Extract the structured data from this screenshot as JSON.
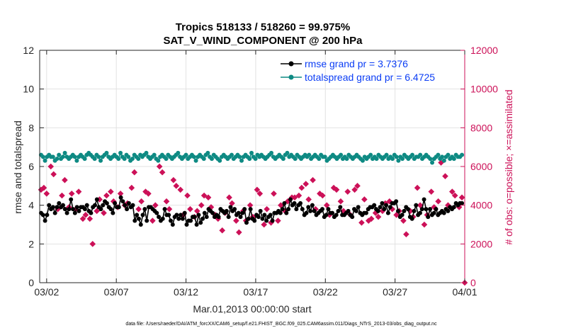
{
  "chart_data": {
    "type": "line",
    "title": "Tropics 518133 / 518260 = 99.975%",
    "subtitle": "SAT_V_WIND_COMPONENT @ 200 hPa",
    "xlabel": "Mar.01,2013 00:00:00 start",
    "ylabel": "rmse and totalspread",
    "ylabel_right": "# of obs: o=possible; ×=assimilated",
    "footnote": "data file: /Users/raeder/DAI/ATM_forcXX/CAM6_setup/f.e21.FHIST_BGC.f09_025.CAM6assim.011/Diags_NTrS_2013-03/obs_diag_output.nc",
    "xlim": [
      1.5,
      32
    ],
    "ylim": [
      0,
      12
    ],
    "ylim_right": [
      0,
      12000
    ],
    "x_ticks": [
      2,
      7,
      12,
      17,
      22,
      27,
      32
    ],
    "x_tick_labels": [
      "03/02",
      "03/07",
      "03/12",
      "03/17",
      "03/22",
      "03/27",
      "04/01"
    ],
    "y_ticks": [
      0,
      2,
      4,
      6,
      8,
      10,
      12
    ],
    "y_ticks_right": [
      0,
      2000,
      4000,
      6000,
      8000,
      10000,
      12000
    ],
    "grid": true,
    "legend_position": "top-right",
    "colors": {
      "rmse": "#000000",
      "totalspread": "#0e8a83",
      "obs": "#cc1158",
      "legend_text": "#0b3df5",
      "right_axis": "#cc1158"
    },
    "series": [
      {
        "name": "rmse grand pr = 3.7376",
        "axis": "left",
        "values": [
          3.6,
          3.5,
          3.2,
          3.5,
          4.0,
          3.8,
          3.9,
          3.6,
          3.9,
          4.1,
          3.9,
          4.0,
          3.8,
          3.6,
          3.8,
          4.3,
          3.8,
          3.6,
          3.9,
          3.7,
          3.9,
          3.9,
          3.8,
          4.0,
          3.7,
          3.6,
          3.9,
          4.0,
          4.3,
          3.9,
          3.8,
          4.0,
          4.2,
          4.1,
          3.9,
          3.8,
          3.6,
          4.1,
          3.9,
          3.9,
          4.4,
          4.2,
          4.0,
          3.8,
          4.1,
          3.9,
          4.0,
          3.2,
          3.5,
          3.3,
          3.0,
          3.5,
          3.8,
          3.2,
          3.9,
          3.9,
          3.8,
          3.7,
          3.6,
          3.4,
          3.2,
          3.3,
          3.8,
          3.5,
          3.5,
          3.2,
          3.0,
          3.4,
          3.5,
          3.3,
          3.5,
          3.3,
          3.6,
          3.0,
          3.2,
          3.2,
          3.4,
          3.4,
          3.0,
          3.5,
          3.1,
          3.3,
          3.6,
          3.4,
          3.8,
          3.7,
          3.6,
          3.4,
          3.5,
          3.4,
          3.8,
          3.7,
          3.6,
          3.7,
          3.4,
          3.9,
          3.7,
          3.8,
          3.5,
          3.6,
          3.4,
          3.6,
          3.8,
          3.1,
          3.3,
          3.8,
          3.3,
          3.2,
          3.5,
          3.4,
          3.7,
          3.3,
          3.5,
          3.2,
          3.4,
          3.5,
          3.2,
          3.6,
          3.6,
          3.7,
          3.6,
          3.8,
          4.1,
          3.6,
          3.8,
          4.3,
          4.0,
          4.1,
          3.8,
          4.0,
          4.1,
          3.8,
          3.5,
          3.6,
          3.9,
          3.7,
          4.0,
          3.7,
          3.5,
          3.6,
          3.7,
          3.8,
          3.4,
          3.5,
          3.8,
          3.6,
          3.6,
          3.4,
          3.5,
          3.7,
          3.9,
          3.5,
          3.5,
          3.6,
          3.7,
          3.5,
          3.4,
          3.8,
          3.7,
          3.9,
          3.6,
          3.5,
          3.6,
          3.6,
          3.8,
          3.9,
          3.9,
          4.0,
          3.8,
          3.7,
          3.9,
          4.1,
          3.8,
          4.0,
          3.6,
          3.9,
          4.1,
          4.1,
          4.2,
          3.7,
          3.4,
          3.5,
          3.7,
          3.9,
          3.8,
          3.4,
          3.3,
          3.7,
          4.0,
          3.5,
          3.6,
          3.8,
          4.3,
          3.8,
          3.4,
          3.8,
          3.5,
          3.6,
          3.8,
          3.5,
          3.6,
          3.7,
          3.6,
          3.8,
          3.7,
          3.9,
          3.8,
          3.9,
          4.1,
          4.0,
          4.1,
          4.1
        ]
      },
      {
        "name": "totalspread grand pr = 6.4725",
        "axis": "left",
        "values": [
          6.6,
          6.5,
          6.3,
          6.5,
          6.6,
          6.5,
          6.5,
          6.3,
          6.4,
          6.6,
          6.4,
          6.5,
          6.7,
          6.5,
          6.4,
          6.5,
          6.6,
          6.5,
          6.3,
          6.5,
          6.6,
          6.5,
          6.4,
          6.6,
          6.7,
          6.6,
          6.5,
          6.4,
          6.6,
          6.5,
          6.3,
          6.5,
          6.6,
          6.7,
          6.5,
          6.4,
          6.5,
          6.6,
          6.5,
          6.4,
          6.7,
          6.5,
          6.4,
          6.6,
          6.5,
          6.3,
          6.4,
          6.6,
          6.5,
          6.4,
          6.6,
          6.5,
          6.6,
          6.7,
          6.5,
          6.4,
          6.5,
          6.6,
          6.4,
          6.3,
          6.5,
          6.6,
          6.5,
          6.4,
          6.6,
          6.5,
          6.4,
          6.5,
          6.6,
          6.7,
          6.5,
          6.4,
          6.5,
          6.6,
          6.4,
          6.5,
          6.6,
          6.5,
          6.3,
          6.5,
          6.6,
          6.5,
          6.4,
          6.6,
          6.7,
          6.5,
          6.4,
          6.6,
          6.5,
          6.4,
          6.3,
          6.5,
          6.6,
          6.5,
          6.4,
          6.5,
          6.6,
          6.4,
          6.5,
          6.6,
          6.5,
          6.3,
          6.5,
          6.6,
          6.5,
          6.4,
          6.7,
          6.5,
          6.4,
          6.6,
          6.5,
          6.6,
          6.5,
          6.4,
          6.5,
          6.6,
          6.7,
          6.5,
          6.4,
          6.5,
          6.6,
          6.5,
          6.4,
          6.6,
          6.7,
          6.5,
          6.6,
          6.5,
          6.4,
          6.6,
          6.5,
          6.4,
          6.5,
          6.6,
          6.5,
          6.6,
          6.4,
          6.5,
          6.6,
          6.5,
          6.4,
          6.6,
          6.5,
          6.5,
          6.3,
          6.4,
          6.5,
          6.6,
          6.5,
          6.4,
          6.5,
          6.6,
          6.4,
          6.5,
          6.4,
          6.6,
          6.5,
          6.4,
          6.5,
          6.6,
          6.5,
          6.4,
          6.3,
          6.5,
          6.4,
          6.5,
          6.6,
          6.4,
          6.5,
          6.4,
          6.6,
          6.5,
          6.4,
          6.5,
          6.6,
          6.4,
          6.5,
          6.4,
          6.6,
          6.5,
          6.3,
          6.5,
          6.4,
          6.6,
          6.5,
          6.4,
          6.5,
          6.6,
          6.4,
          6.5,
          6.5,
          6.6,
          6.4,
          6.5,
          6.6,
          6.5,
          6.4,
          6.2,
          6.4,
          6.5,
          6.6,
          6.4,
          6.5,
          6.3,
          6.5,
          6.6,
          6.4,
          6.5,
          6.4,
          6.6,
          6.5,
          6.5,
          6.6
        ]
      },
      {
        "name": "# of obs assimilated",
        "axis": "right",
        "points": [
          [
            1.6,
            4800
          ],
          [
            1.8,
            4900
          ],
          [
            2.0,
            4600
          ],
          [
            2.3,
            6000
          ],
          [
            2.5,
            5600
          ],
          [
            2.8,
            3800
          ],
          [
            3.1,
            4500
          ],
          [
            3.3,
            5300
          ],
          [
            3.6,
            3900
          ],
          [
            3.8,
            4600
          ],
          [
            4.1,
            3800
          ],
          [
            4.3,
            4700
          ],
          [
            4.6,
            3300
          ],
          [
            4.8,
            3500
          ],
          [
            5.1,
            3300
          ],
          [
            5.3,
            2000
          ],
          [
            5.6,
            3700
          ],
          [
            5.8,
            4300
          ],
          [
            6.1,
            3600
          ],
          [
            6.3,
            4500
          ],
          [
            6.6,
            4700
          ],
          [
            6.8,
            4200
          ],
          [
            7.1,
            3900
          ],
          [
            7.3,
            4600
          ],
          [
            7.6,
            4000
          ],
          [
            7.8,
            4100
          ],
          [
            8.1,
            4900
          ],
          [
            8.3,
            5700
          ],
          [
            8.6,
            3800
          ],
          [
            8.8,
            4200
          ],
          [
            9.1,
            4700
          ],
          [
            9.3,
            4600
          ],
          [
            9.6,
            3200
          ],
          [
            9.8,
            4000
          ],
          [
            10.1,
            6000
          ],
          [
            10.3,
            5700
          ],
          [
            10.6,
            4200
          ],
          [
            10.8,
            3800
          ],
          [
            11.1,
            5300
          ],
          [
            11.3,
            5000
          ],
          [
            11.6,
            4800
          ],
          [
            11.8,
            3500
          ],
          [
            12.1,
            4500
          ],
          [
            12.3,
            3800
          ],
          [
            12.6,
            3400
          ],
          [
            12.8,
            3700
          ],
          [
            13.1,
            4000
          ],
          [
            13.3,
            4500
          ],
          [
            13.6,
            4400
          ],
          [
            13.8,
            3900
          ],
          [
            14.1,
            3500
          ],
          [
            14.3,
            3300
          ],
          [
            14.6,
            2700
          ],
          [
            14.8,
            3600
          ],
          [
            15.1,
            4400
          ],
          [
            15.3,
            4100
          ],
          [
            15.6,
            3200
          ],
          [
            15.8,
            2600
          ],
          [
            16.1,
            3700
          ],
          [
            16.3,
            3200
          ],
          [
            16.6,
            4000
          ],
          [
            16.8,
            3400
          ],
          [
            17.1,
            4800
          ],
          [
            17.3,
            4600
          ],
          [
            17.6,
            3000
          ],
          [
            17.8,
            3800
          ],
          [
            18.1,
            3100
          ],
          [
            18.3,
            4600
          ],
          [
            18.6,
            3200
          ],
          [
            18.8,
            4000
          ],
          [
            19.1,
            3700
          ],
          [
            19.3,
            4200
          ],
          [
            19.6,
            4400
          ],
          [
            19.8,
            4400
          ],
          [
            20.1,
            4500
          ],
          [
            20.3,
            4900
          ],
          [
            20.6,
            5100
          ],
          [
            20.8,
            4300
          ],
          [
            21.1,
            5300
          ],
          [
            21.3,
            3800
          ],
          [
            21.6,
            4600
          ],
          [
            21.8,
            4500
          ],
          [
            22.1,
            4000
          ],
          [
            22.3,
            3500
          ],
          [
            22.6,
            4900
          ],
          [
            22.8,
            4800
          ],
          [
            23.1,
            4200
          ],
          [
            23.3,
            3700
          ],
          [
            23.6,
            4700
          ],
          [
            23.8,
            3500
          ],
          [
            24.1,
            4800
          ],
          [
            24.3,
            5000
          ],
          [
            24.6,
            3100
          ],
          [
            24.8,
            4300
          ],
          [
            25.1,
            3200
          ],
          [
            25.3,
            3300
          ],
          [
            25.6,
            3600
          ],
          [
            25.8,
            3400
          ],
          [
            26.1,
            3700
          ],
          [
            26.3,
            4100
          ],
          [
            26.6,
            4200
          ],
          [
            26.8,
            3800
          ],
          [
            27.1,
            3500
          ],
          [
            27.3,
            3700
          ],
          [
            27.6,
            3200
          ],
          [
            27.8,
            2500
          ],
          [
            28.1,
            3700
          ],
          [
            28.3,
            3400
          ],
          [
            28.6,
            4900
          ],
          [
            28.8,
            4000
          ],
          [
            29.1,
            3000
          ],
          [
            29.3,
            3500
          ],
          [
            29.6,
            4700
          ],
          [
            29.8,
            3900
          ],
          [
            30.1,
            4200
          ],
          [
            30.3,
            6200
          ],
          [
            30.6,
            5500
          ],
          [
            30.8,
            4000
          ],
          [
            31.1,
            4700
          ],
          [
            31.3,
            4500
          ],
          [
            31.6,
            3900
          ],
          [
            31.8,
            4400
          ],
          [
            32.0,
            0
          ]
        ]
      }
    ]
  }
}
